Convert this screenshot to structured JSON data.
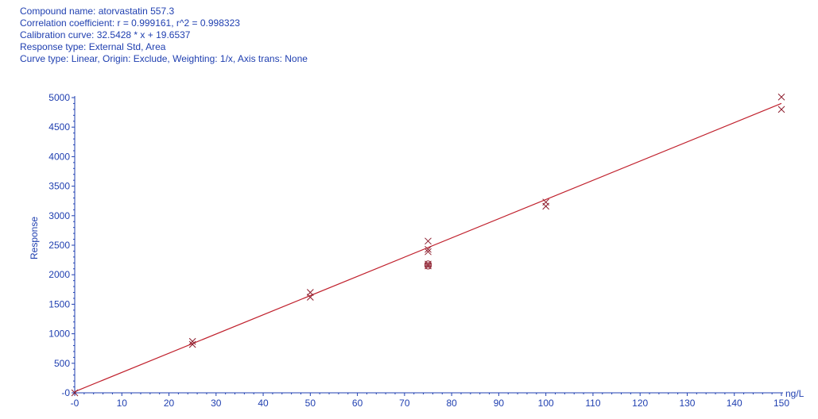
{
  "header": {
    "compound": "Compound name: atorvastatin 557.3",
    "correlation": "Correlation coefficient: r = 0.999161, r^2 = 0.998323",
    "calibration": "Calibration curve: 32.5428 * x + 19.6537",
    "response_type": "Response type: External Std, Area",
    "curve_type": "Curve type: Linear, Origin: Exclude, Weighting: 1/x, Axis trans: None"
  },
  "colors": {
    "text": "#1f3fb0",
    "axis": "#1f3fb0",
    "fit_line": "#c0202c",
    "points": "#8c1c2c"
  },
  "chart_data": {
    "type": "scatter",
    "xlabel": "ng/L",
    "ylabel": "Response",
    "xlim": [
      0,
      150
    ],
    "ylim": [
      0,
      5000
    ],
    "x_ticks": [
      0,
      10,
      20,
      30,
      40,
      50,
      60,
      70,
      80,
      90,
      100,
      110,
      120,
      130,
      140,
      150
    ],
    "y_ticks": [
      0,
      500,
      1000,
      1500,
      2000,
      2500,
      3000,
      3500,
      4000,
      4500,
      5000
    ],
    "x_tick_labels": [
      "-0",
      "10",
      "20",
      "30",
      "40",
      "50",
      "60",
      "70",
      "80",
      "90",
      "100",
      "110",
      "120",
      "130",
      "140",
      "150"
    ],
    "y_tick_labels": [
      "-0",
      "500",
      "1000",
      "1500",
      "2000",
      "2500",
      "3000",
      "3500",
      "4000",
      "4500",
      "5000"
    ],
    "grid": false,
    "fit": {
      "slope": 32.5428,
      "intercept": 19.6537,
      "x_range": [
        0,
        150
      ]
    },
    "series": [
      {
        "marker": "x",
        "points": [
          [
            0,
            0
          ],
          [
            25,
            870
          ],
          [
            25,
            820
          ],
          [
            50,
            1700
          ],
          [
            50,
            1620
          ],
          [
            75,
            2570
          ],
          [
            75,
            2430
          ],
          [
            75,
            2390
          ],
          [
            100,
            3230
          ],
          [
            100,
            3160
          ],
          [
            150,
            5010
          ],
          [
            150,
            4800
          ]
        ]
      },
      {
        "marker": "circle-x",
        "points": [
          [
            75,
            2180
          ],
          [
            75,
            2150
          ]
        ]
      }
    ]
  }
}
